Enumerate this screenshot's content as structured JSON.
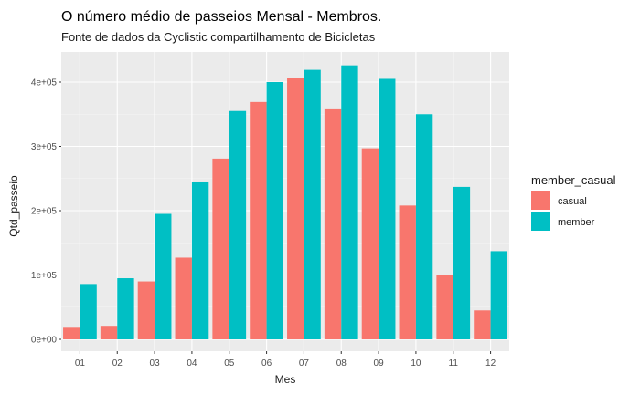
{
  "chart_data": {
    "type": "bar",
    "title": "O número médio de passeios Mensal - Membros.",
    "subtitle": "Fonte de dados da Cyclistic compartilhamento de Bicicletas",
    "xlabel": "Mes",
    "ylabel": "Qtd_passeio",
    "categories": [
      "01",
      "02",
      "03",
      "04",
      "05",
      "06",
      "07",
      "08",
      "09",
      "10",
      "11",
      "12"
    ],
    "ylim": [
      0,
      440000
    ],
    "yticks": [
      0,
      100000,
      200000,
      300000,
      400000
    ],
    "ytick_labels": [
      "0e+00",
      "1e+05",
      "2e+05",
      "3e+05",
      "4e+05"
    ],
    "legend_title": "member_casual",
    "legend_position": "right",
    "grid": true,
    "series": [
      {
        "name": "casual",
        "color": "#F8766D",
        "values": [
          18000,
          21000,
          90000,
          127000,
          281000,
          369000,
          406000,
          359000,
          297000,
          208000,
          100000,
          45000
        ]
      },
      {
        "name": "member",
        "color": "#00BFC4",
        "values": [
          86000,
          95000,
          195000,
          244000,
          355000,
          400000,
          419000,
          426000,
          405000,
          350000,
          237000,
          137000
        ]
      }
    ]
  }
}
